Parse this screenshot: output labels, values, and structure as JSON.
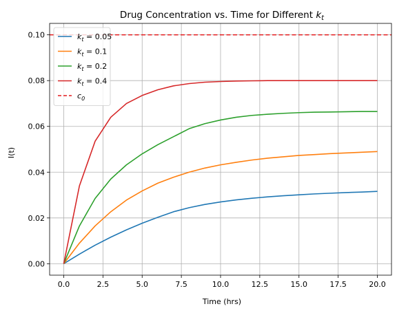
{
  "chart_data": {
    "type": "line",
    "title": "Drug Concentration vs. Time for Different",
    "title_symbol": "k",
    "title_symbol_sub": "t",
    "xlabel": "Time (hrs)",
    "ylabel": "I(t)",
    "xlim": [
      -0.9,
      20.9
    ],
    "ylim": [
      -0.005,
      0.105
    ],
    "xticks": [
      0.0,
      2.5,
      5.0,
      7.5,
      10.0,
      12.5,
      15.0,
      17.5,
      20.0
    ],
    "xtick_labels": [
      "0.0",
      "2.5",
      "5.0",
      "7.5",
      "10.0",
      "12.5",
      "15.0",
      "17.5",
      "20.0"
    ],
    "yticks": [
      0.0,
      0.02,
      0.04,
      0.06,
      0.08,
      0.1
    ],
    "ytick_labels": [
      "0.00",
      "0.02",
      "0.04",
      "0.06",
      "0.08",
      "0.10"
    ],
    "grid": true,
    "legend_position": "upper-left",
    "x": [
      0,
      1,
      2,
      3,
      4,
      5,
      6,
      7,
      8,
      9,
      10,
      11,
      12,
      13,
      14,
      15,
      16,
      17,
      18,
      19,
      20
    ],
    "series": [
      {
        "name": "k_t = 0.05",
        "legend_prefix": "k",
        "legend_sub": "t",
        "legend_value": " = 0.05",
        "color": "#1f77b4",
        "values": [
          0.0,
          0.0042,
          0.0081,
          0.0116,
          0.0148,
          0.0177,
          0.0203,
          0.0227,
          0.0245,
          0.0259,
          0.027,
          0.0279,
          0.0286,
          0.0292,
          0.0297,
          0.0301,
          0.0305,
          0.0308,
          0.0311,
          0.0313,
          0.0316
        ]
      },
      {
        "name": "k_t = 0.1",
        "legend_prefix": "k",
        "legend_sub": "t",
        "legend_value": " = 0.1",
        "color": "#ff7f0e",
        "values": [
          0.0,
          0.009,
          0.0165,
          0.0227,
          0.0278,
          0.0318,
          0.0352,
          0.0378,
          0.04,
          0.0418,
          0.0432,
          0.0443,
          0.0453,
          0.0461,
          0.0467,
          0.0473,
          0.0477,
          0.0481,
          0.0484,
          0.0487,
          0.049
        ]
      },
      {
        "name": "k_t = 0.2",
        "legend_prefix": "k",
        "legend_sub": "t",
        "legend_value": " = 0.2",
        "color": "#2ca02c",
        "values": [
          0.0,
          0.0165,
          0.0285,
          0.037,
          0.0432,
          0.048,
          0.052,
          0.0555,
          0.059,
          0.0612,
          0.0628,
          0.064,
          0.0648,
          0.0653,
          0.0657,
          0.066,
          0.0662,
          0.0663,
          0.0664,
          0.0665,
          0.0665
        ]
      },
      {
        "name": "k_t = 0.4",
        "legend_prefix": "k",
        "legend_sub": "t",
        "legend_value": " = 0.4",
        "color": "#d62728",
        "values": [
          0.0,
          0.034,
          0.0535,
          0.064,
          0.07,
          0.0735,
          0.076,
          0.0777,
          0.0787,
          0.0793,
          0.0796,
          0.0798,
          0.0799,
          0.08,
          0.08,
          0.08,
          0.08,
          0.08,
          0.08,
          0.08,
          0.08
        ]
      }
    ],
    "reference_line": {
      "name": "c_0",
      "legend_prefix": "c",
      "legend_sub": "0",
      "y": 0.1,
      "color": "#e41a1c",
      "style": "dashed"
    }
  }
}
